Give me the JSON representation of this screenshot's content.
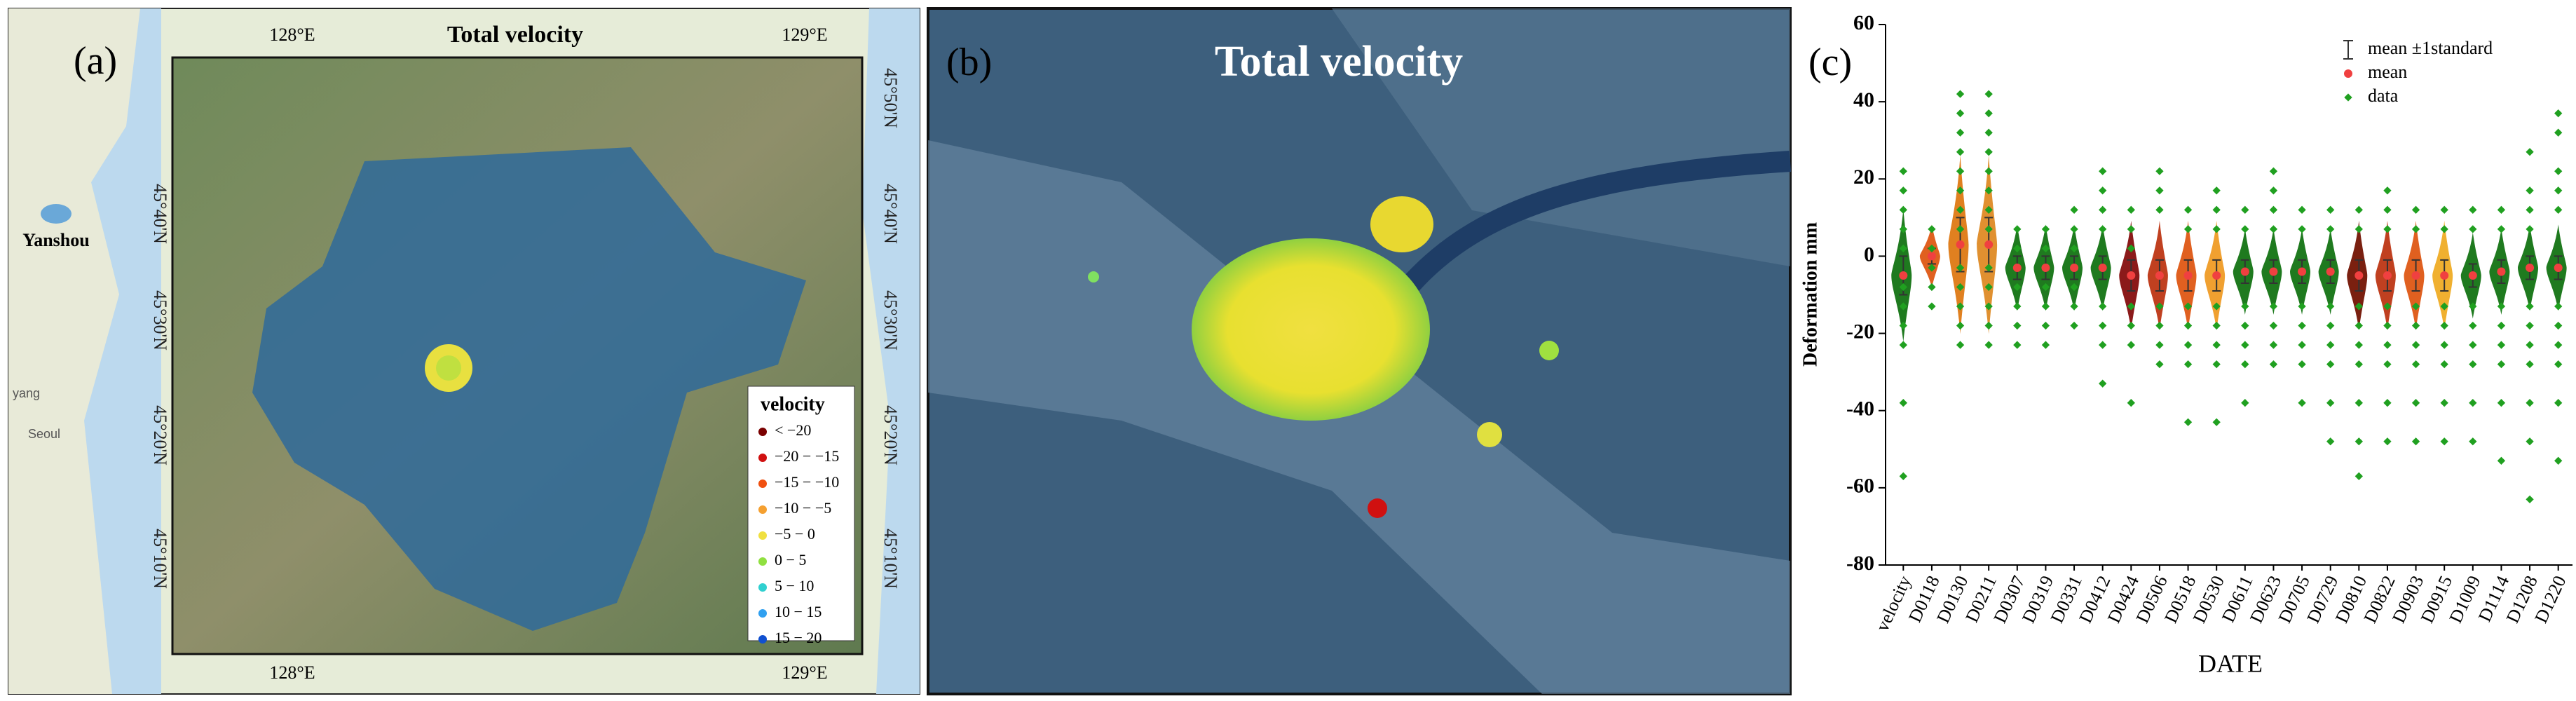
{
  "panel_a": {
    "label": "(a)",
    "title": "Total velocity",
    "lon_ticks": [
      "128°E",
      "129°E"
    ],
    "lat_ticks": [
      "45°50'N",
      "45°40'N",
      "45°30'N",
      "45°20'N",
      "45°10'N"
    ],
    "places": [
      "Yanshou",
      "Seoul",
      "yang"
    ],
    "legend_title": "velocity",
    "legend": [
      {
        "label": "< −20",
        "color": "#7a0000"
      },
      {
        "label": "−20 − −15",
        "color": "#d01010"
      },
      {
        "label": "−15 − −10",
        "color": "#f05010"
      },
      {
        "label": "−10 − −5",
        "color": "#f5a030"
      },
      {
        "label": "−5 − 0",
        "color": "#f0e040"
      },
      {
        "label": "0 − 5",
        "color": "#90e040"
      },
      {
        "label": "5 − 10",
        "color": "#30d0d0"
      },
      {
        "label": "10 − 15",
        "color": "#30a0f0"
      },
      {
        "label": "15 − 20",
        "color": "#1050d0"
      }
    ]
  },
  "panel_b": {
    "label": "(b)",
    "title": "Total velocity"
  },
  "chart_data": {
    "type": "violin",
    "label": "(c)",
    "x_label": "DATE",
    "y_label": "Deformation  mm",
    "categories": [
      "velocity",
      "D0118",
      "D0130",
      "D0211",
      "D0307",
      "D0319",
      "D0331",
      "D0412",
      "D0424",
      "D0506",
      "D0518",
      "D0530",
      "D0611",
      "D0623",
      "D0705",
      "D0729",
      "D0810",
      "D0822",
      "D0903",
      "D0915",
      "D1009",
      "D1114",
      "D1208",
      "D1220"
    ],
    "ylim": [
      -80,
      60
    ],
    "yticks": [
      -80,
      -60,
      -40,
      -20,
      0,
      20,
      40,
      60
    ],
    "violin_colors": [
      "#1f7a1f",
      "#e06020",
      "#e08020",
      "#e09030",
      "#1f7a1f",
      "#1f7a1f",
      "#1f7a1f",
      "#1f7a1f",
      "#8b1a1a",
      "#c04020",
      "#e06020",
      "#f0a030",
      "#1f7a1f",
      "#1f7a1f",
      "#1f7a1f",
      "#1f7a1f",
      "#7a2010",
      "#c04020",
      "#e06020",
      "#f0b030",
      "#1f7a1f",
      "#1f7a1f",
      "#1f7a1f",
      "#1f7a1f"
    ],
    "error_bar": {
      "name": "mean ±1standard",
      "color": "#333333",
      "values": [
        5,
        2,
        7,
        7,
        3,
        3,
        3,
        3,
        4,
        4,
        4,
        4,
        3,
        3,
        3,
        3,
        4,
        4,
        4,
        4,
        3,
        3,
        3,
        3
      ]
    },
    "series": [
      {
        "name": "mean",
        "color": "#f04040",
        "values": [
          -5,
          0,
          3,
          3,
          -3,
          -3,
          -3,
          -3,
          -5,
          -5,
          -5,
          -5,
          -4,
          -4,
          -4,
          -4,
          -5,
          -5,
          -5,
          -5,
          -5,
          -4,
          -3,
          -3
        ]
      },
      {
        "name": "data",
        "color": "#20a020",
        "values": [
          [
            22,
            17,
            12,
            7,
            2,
            -8,
            -13,
            -18,
            -23,
            -38,
            -57
          ],
          [
            7,
            2,
            -3,
            -8,
            -13
          ],
          [
            42,
            37,
            32,
            27,
            22,
            17,
            12,
            7,
            -3,
            -8,
            -13,
            -18,
            -23
          ],
          [
            42,
            37,
            32,
            27,
            22,
            17,
            12,
            7,
            -3,
            -8,
            -13,
            -18,
            -23
          ],
          [
            7,
            2,
            -8,
            -13,
            -18,
            -23
          ],
          [
            7,
            2,
            -8,
            -13,
            -18,
            -23
          ],
          [
            12,
            7,
            2,
            -8,
            -13,
            -18
          ],
          [
            22,
            17,
            12,
            7,
            -13,
            -18,
            -23,
            -33
          ],
          [
            12,
            7,
            2,
            -13,
            -18,
            -23,
            -38
          ],
          [
            22,
            17,
            12,
            -13,
            -18,
            -23,
            -28
          ],
          [
            12,
            7,
            -13,
            -18,
            -23,
            -28,
            -43
          ],
          [
            17,
            12,
            7,
            -13,
            -18,
            -23,
            -28,
            -43
          ],
          [
            12,
            7,
            -13,
            -18,
            -23,
            -28,
            -38
          ],
          [
            22,
            17,
            12,
            7,
            -13,
            -18,
            -23,
            -28
          ],
          [
            12,
            7,
            -13,
            -18,
            -23,
            -28,
            -38
          ],
          [
            12,
            7,
            -13,
            -18,
            -23,
            -28,
            -38,
            -48
          ],
          [
            12,
            7,
            -13,
            -18,
            -23,
            -28,
            -38,
            -48,
            -57
          ],
          [
            17,
            12,
            7,
            -13,
            -18,
            -23,
            -28,
            -38,
            -48
          ],
          [
            12,
            7,
            -13,
            -18,
            -23,
            -28,
            -38,
            -48
          ],
          [
            12,
            7,
            -13,
            -18,
            -23,
            -28,
            -38,
            -48
          ],
          [
            12,
            7,
            -13,
            -18,
            -23,
            -28,
            -38,
            -48
          ],
          [
            12,
            7,
            -13,
            -18,
            -23,
            -28,
            -38,
            -53
          ],
          [
            27,
            17,
            12,
            7,
            -13,
            -18,
            -23,
            -28,
            -38,
            -48,
            -63
          ],
          [
            37,
            32,
            22,
            17,
            12,
            -13,
            -18,
            -23,
            -28,
            -38,
            -53
          ]
        ]
      }
    ]
  }
}
